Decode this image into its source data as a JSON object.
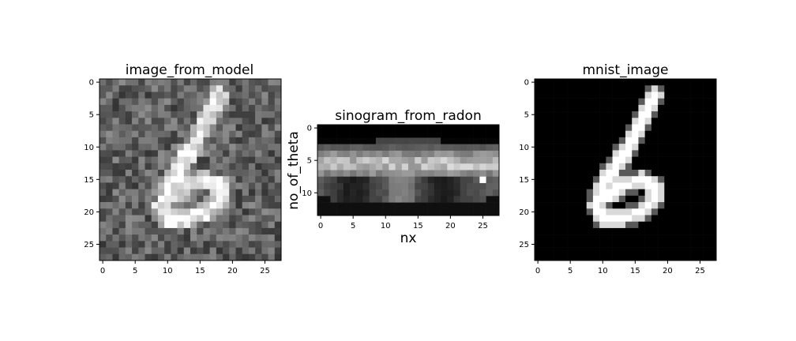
{
  "panels": [
    {
      "title": "image_from_model",
      "xlabel": "",
      "ylabel": "",
      "xticks": [
        "0",
        "5",
        "10",
        "15",
        "20",
        "25"
      ],
      "yticks": [
        "0",
        "5",
        "10",
        "15",
        "20",
        "25"
      ]
    },
    {
      "title": "sinogram_from_radon",
      "xlabel": "nx",
      "ylabel": "no_of_theta",
      "xticks": [
        "0",
        "5",
        "10",
        "15",
        "20",
        "25"
      ],
      "yticks": [
        "0",
        "5",
        "10"
      ]
    },
    {
      "title": "mnist_image",
      "xlabel": "",
      "ylabel": "",
      "xticks": [
        "0",
        "5",
        "10",
        "15",
        "20",
        "25"
      ],
      "yticks": [
        "0",
        "5",
        "10",
        "15",
        "20",
        "25"
      ]
    }
  ],
  "chart_data": [
    {
      "type": "heatmap",
      "title": "image_from_model",
      "colormap": "gray",
      "rows": 28,
      "cols": 28,
      "xlim": [
        -0.5,
        27.5
      ],
      "ylim": [
        27.5,
        -0.5
      ],
      "description_values": "noisy reconstruction of handwritten digit 6"
    },
    {
      "type": "heatmap",
      "title": "sinogram_from_radon",
      "colormap": "gray",
      "rows": 14,
      "cols": 28,
      "xlim": [
        -0.5,
        27.5
      ],
      "ylim": [
        13.5,
        -0.5
      ],
      "xlabel": "nx",
      "ylabel": "no_of_theta"
    },
    {
      "type": "heatmap",
      "title": "mnist_image",
      "colormap": "gray",
      "rows": 28,
      "cols": 28,
      "xlim": [
        -0.5,
        27.5
      ],
      "ylim": [
        27.5,
        -0.5
      ]
    }
  ]
}
